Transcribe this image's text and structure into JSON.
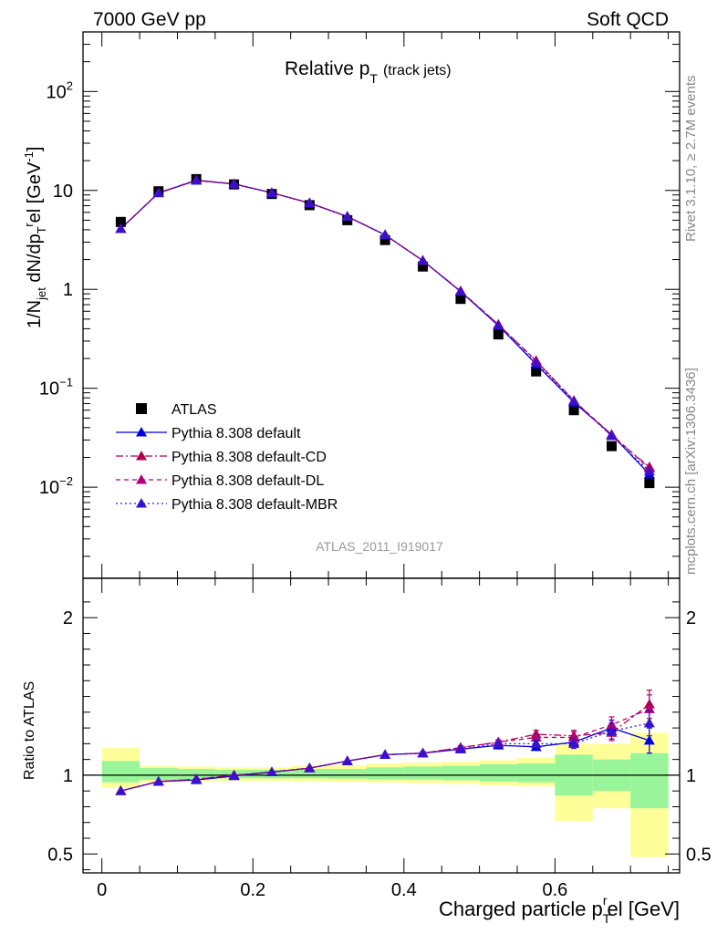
{
  "header": {
    "left": "7000 GeV pp",
    "right": "Soft QCD"
  },
  "side_text": {
    "rivet": "Rivet 3.1.10, ≥ 2.7M events",
    "mcplots": "mcplots.cern.ch [arXiv:1306.3436]"
  },
  "analysis_tag": "ATLAS_2011_I919017",
  "chart_data": [
    {
      "type": "line",
      "title": "Relative p_T (track jets)",
      "title_main": "Relative p",
      "title_sub": "T",
      "title_suffix": "(track jets)",
      "ylabel": "1/N_jet dN/dp_T^rel [GeV^-1]",
      "yscale": "log",
      "ylim": [
        0.0012,
        400
      ],
      "xlim": [
        -0.025,
        0.765
      ],
      "y_ticks": [
        {
          "value": 0.01,
          "base": "10",
          "exp": "−2"
        },
        {
          "value": 0.1,
          "base": "10",
          "exp": "−1"
        },
        {
          "value": 1,
          "base": "1",
          "exp": ""
        },
        {
          "value": 10,
          "base": "10",
          "exp": ""
        },
        {
          "value": 100,
          "base": "10",
          "exp": "2"
        }
      ],
      "x": [
        0.025,
        0.075,
        0.125,
        0.175,
        0.225,
        0.275,
        0.325,
        0.375,
        0.425,
        0.475,
        0.525,
        0.575,
        0.625,
        0.675,
        0.725
      ],
      "series": [
        {
          "name": "ATLAS",
          "marker": "square",
          "color": "#000000",
          "values": [
            4.8,
            9.8,
            13.0,
            11.5,
            9.2,
            7.1,
            5.0,
            3.15,
            1.7,
            0.8,
            0.35,
            0.148,
            0.06,
            0.026,
            0.011
          ]
        },
        {
          "name": "Pythia 8.308 default",
          "marker": "triangle",
          "color": "#0000dd",
          "dash": "solid",
          "values": [
            4.1,
            9.4,
            12.6,
            11.6,
            9.45,
            7.45,
            5.45,
            3.55,
            1.95,
            0.95,
            0.43,
            0.175,
            0.072,
            0.034,
            0.0135
          ]
        },
        {
          "name": "Pythia 8.308 default-CD",
          "marker": "triangle",
          "color": "#b0004a",
          "dash": "8,3,2,3",
          "values": [
            4.1,
            9.45,
            12.7,
            11.65,
            9.45,
            7.45,
            5.45,
            3.55,
            1.95,
            0.96,
            0.44,
            0.19,
            0.075,
            0.033,
            0.016
          ]
        },
        {
          "name": "Pythia 8.308 default-DL",
          "marker": "triangle",
          "color": "#b0007a",
          "dash": "5,4",
          "values": [
            4.1,
            9.45,
            12.7,
            11.65,
            9.45,
            7.45,
            5.45,
            3.55,
            1.95,
            0.96,
            0.44,
            0.19,
            0.075,
            0.034,
            0.0155
          ]
        },
        {
          "name": "Pythia 8.308 default-MBR",
          "marker": "triangle",
          "color": "#3a10d0",
          "dash": "2,3",
          "values": [
            4.1,
            9.4,
            12.6,
            11.6,
            9.45,
            7.45,
            5.45,
            3.55,
            1.95,
            0.95,
            0.43,
            0.18,
            0.074,
            0.033,
            0.0145
          ]
        }
      ]
    },
    {
      "type": "line",
      "xlabel": "Charged particle p_T^rel [GeV]",
      "xlabel_main": "Charged particle p",
      "xlabel_sub": "T",
      "xlabel_sup": "r",
      "xlabel_suffix": "el [GeV]",
      "ylabel": "Ratio to ATLAS",
      "ylim": [
        0.38,
        2.25
      ],
      "xlim": [
        -0.025,
        0.765
      ],
      "x_ticks": [
        0,
        0.2,
        0.4,
        0.6
      ],
      "x_tick_labels": [
        "0",
        "0.2",
        "0.4",
        "0.6"
      ],
      "y_ticks": [
        0.5,
        1,
        2
      ],
      "y_tick_labels": [
        "0.5",
        "1",
        "2"
      ],
      "x": [
        0.025,
        0.075,
        0.125,
        0.175,
        0.225,
        0.275,
        0.325,
        0.375,
        0.425,
        0.475,
        0.525,
        0.575,
        0.625,
        0.675,
        0.725
      ],
      "bin_edges": [
        0,
        0.05,
        0.1,
        0.15,
        0.2,
        0.25,
        0.3,
        0.35,
        0.4,
        0.45,
        0.5,
        0.55,
        0.6,
        0.65,
        0.7,
        0.75
      ],
      "band_stat": {
        "lo": [
          0.955,
          0.97,
          0.975,
          0.98,
          0.98,
          0.98,
          0.978,
          0.975,
          0.972,
          0.968,
          0.96,
          0.955,
          0.87,
          0.9,
          0.79
        ],
        "hi": [
          1.09,
          1.045,
          1.04,
          1.035,
          1.035,
          1.04,
          1.04,
          1.05,
          1.055,
          1.06,
          1.07,
          1.075,
          1.13,
          1.1,
          1.14
        ]
      },
      "band_total": {
        "lo": [
          0.92,
          0.955,
          0.96,
          0.965,
          0.965,
          0.96,
          0.958,
          0.955,
          0.95,
          0.945,
          0.935,
          0.93,
          0.71,
          0.79,
          0.48
        ],
        "hi": [
          1.175,
          1.06,
          1.055,
          1.05,
          1.05,
          1.06,
          1.065,
          1.075,
          1.08,
          1.085,
          1.095,
          1.11,
          1.2,
          1.2,
          1.27
        ]
      },
      "series": [
        {
          "name": "Pythia 8.308 default",
          "color": "#0000dd",
          "dash": "solid",
          "values": [
            0.9,
            0.96,
            0.97,
            0.995,
            1.02,
            1.045,
            1.09,
            1.13,
            1.14,
            1.165,
            1.19,
            1.18,
            1.21,
            1.3,
            1.22
          ],
          "err": [
            0.005,
            0.005,
            0.005,
            0.005,
            0.005,
            0.006,
            0.007,
            0.008,
            0.01,
            0.012,
            0.015,
            0.02,
            0.03,
            0.05,
            0.08
          ]
        },
        {
          "name": "Pythia 8.308 default-CD",
          "color": "#b0004a",
          "dash": "8,3,2,3",
          "values": [
            0.9,
            0.96,
            0.975,
            1.0,
            1.02,
            1.045,
            1.09,
            1.13,
            1.14,
            1.175,
            1.21,
            1.26,
            1.25,
            1.27,
            1.45
          ],
          "err": [
            0.005,
            0.005,
            0.005,
            0.005,
            0.005,
            0.006,
            0.007,
            0.008,
            0.01,
            0.012,
            0.015,
            0.025,
            0.035,
            0.05,
            0.09
          ]
        },
        {
          "name": "Pythia 8.308 default-DL",
          "color": "#b0007a",
          "dash": "5,4",
          "values": [
            0.9,
            0.96,
            0.975,
            1.0,
            1.02,
            1.045,
            1.09,
            1.13,
            1.14,
            1.175,
            1.21,
            1.24,
            1.24,
            1.32,
            1.42
          ],
          "err": [
            0.005,
            0.005,
            0.005,
            0.005,
            0.005,
            0.006,
            0.007,
            0.008,
            0.01,
            0.012,
            0.015,
            0.025,
            0.035,
            0.05,
            0.09
          ]
        },
        {
          "name": "Pythia 8.308 default-MBR",
          "color": "#3a10d0",
          "dash": "2,3",
          "values": [
            0.9,
            0.96,
            0.972,
            0.998,
            1.02,
            1.045,
            1.09,
            1.13,
            1.14,
            1.165,
            1.2,
            1.2,
            1.2,
            1.28,
            1.33
          ],
          "err": [
            0.005,
            0.005,
            0.005,
            0.005,
            0.005,
            0.006,
            0.007,
            0.008,
            0.01,
            0.012,
            0.015,
            0.02,
            0.03,
            0.05,
            0.08
          ]
        }
      ],
      "band_colors": {
        "stat": "#99f599",
        "total": "#ffff99"
      }
    }
  ]
}
